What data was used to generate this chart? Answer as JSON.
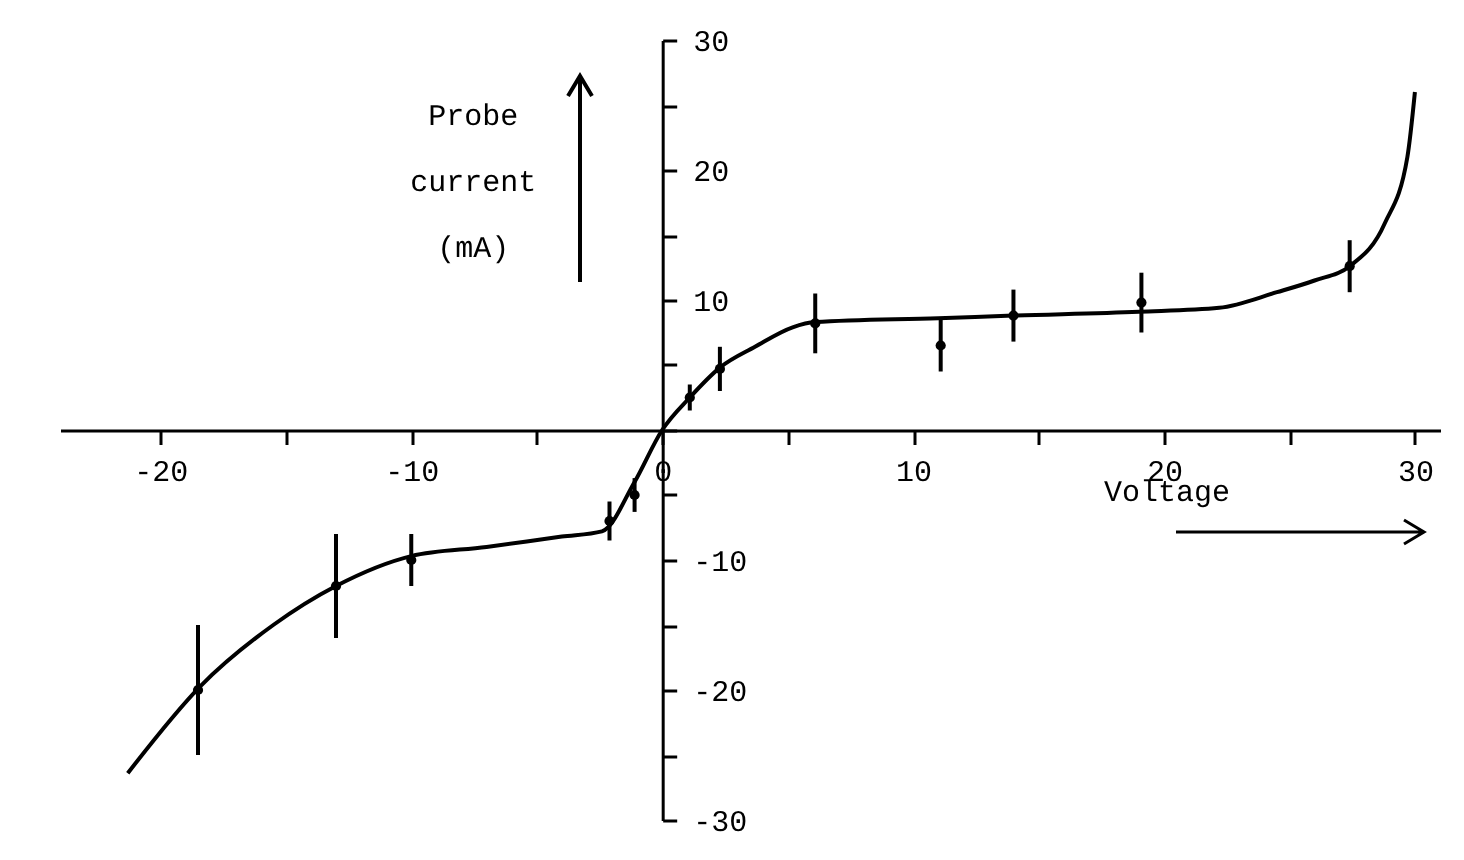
{
  "chart_data": {
    "type": "line",
    "xlabel": "Voltage",
    "ylabel": "Probe current (mA)",
    "xlim": [
      -24,
      31
    ],
    "ylim": [
      -30,
      30
    ],
    "xticks": [
      {
        "value": -20,
        "label": "-20"
      },
      {
        "value": -15,
        "label": null
      },
      {
        "value": -10,
        "label": "-10"
      },
      {
        "value": -5,
        "label": null
      },
      0,
      {
        "value": 5,
        "label": null
      },
      10,
      {
        "value": 15,
        "label": null
      },
      20,
      {
        "value": 25,
        "label": null
      },
      30
    ],
    "yticks": [
      {
        "value": -30,
        "label": "-30"
      },
      {
        "value": -25,
        "label": null
      },
      {
        "value": -20,
        "label": "-20"
      },
      {
        "value": -15,
        "label": null
      },
      {
        "value": -10,
        "label": "-10"
      },
      {
        "value": -5,
        "label": null
      },
      {
        "value": 0,
        "label": null
      },
      {
        "value": 5,
        "label": null
      },
      10,
      {
        "value": 15,
        "label": null
      },
      20,
      {
        "value": 25,
        "label": null
      },
      30
    ],
    "grid": false,
    "line_style": "solid",
    "series": [
      {
        "color": "#000000",
        "x": [
          -21.3,
          -18.4,
          -15.5,
          -13,
          -10,
          -7,
          -4,
          -2.4,
          -1.1,
          0,
          1.1,
          2.3,
          3.7,
          5.2,
          6.1,
          11,
          14,
          19,
          22.2,
          24.5,
          26,
          27.4,
          28.8,
          29.7,
          30
        ],
        "values": [
          -26.4,
          -19.7,
          -15,
          -12,
          -9.7,
          -9,
          -8.2,
          -7.8,
          -4,
          0,
          2.5,
          4.8,
          6.4,
          7.9,
          8.3,
          8.6,
          8.8,
          9.1,
          9.4,
          10.6,
          11.5,
          12.6,
          15.9,
          21,
          26
        ]
      },
      {
        "type": "scatter",
        "color": "#000000",
        "marker": "circle",
        "x": [
          -18.5,
          -13,
          -10,
          -2.1,
          -1.1,
          1.1,
          2.3,
          6.1,
          11.1,
          14,
          19.1,
          27.4
        ],
        "values": [
          -20,
          -12,
          -10,
          -7,
          -5,
          2.5,
          4.7,
          8.2,
          6.5,
          8.8,
          9.8,
          12.6
        ],
        "errors": [
          5,
          4,
          2,
          1.5,
          1.3,
          1,
          1.7,
          2.3,
          2,
          2,
          2.3,
          2
        ]
      }
    ]
  }
}
